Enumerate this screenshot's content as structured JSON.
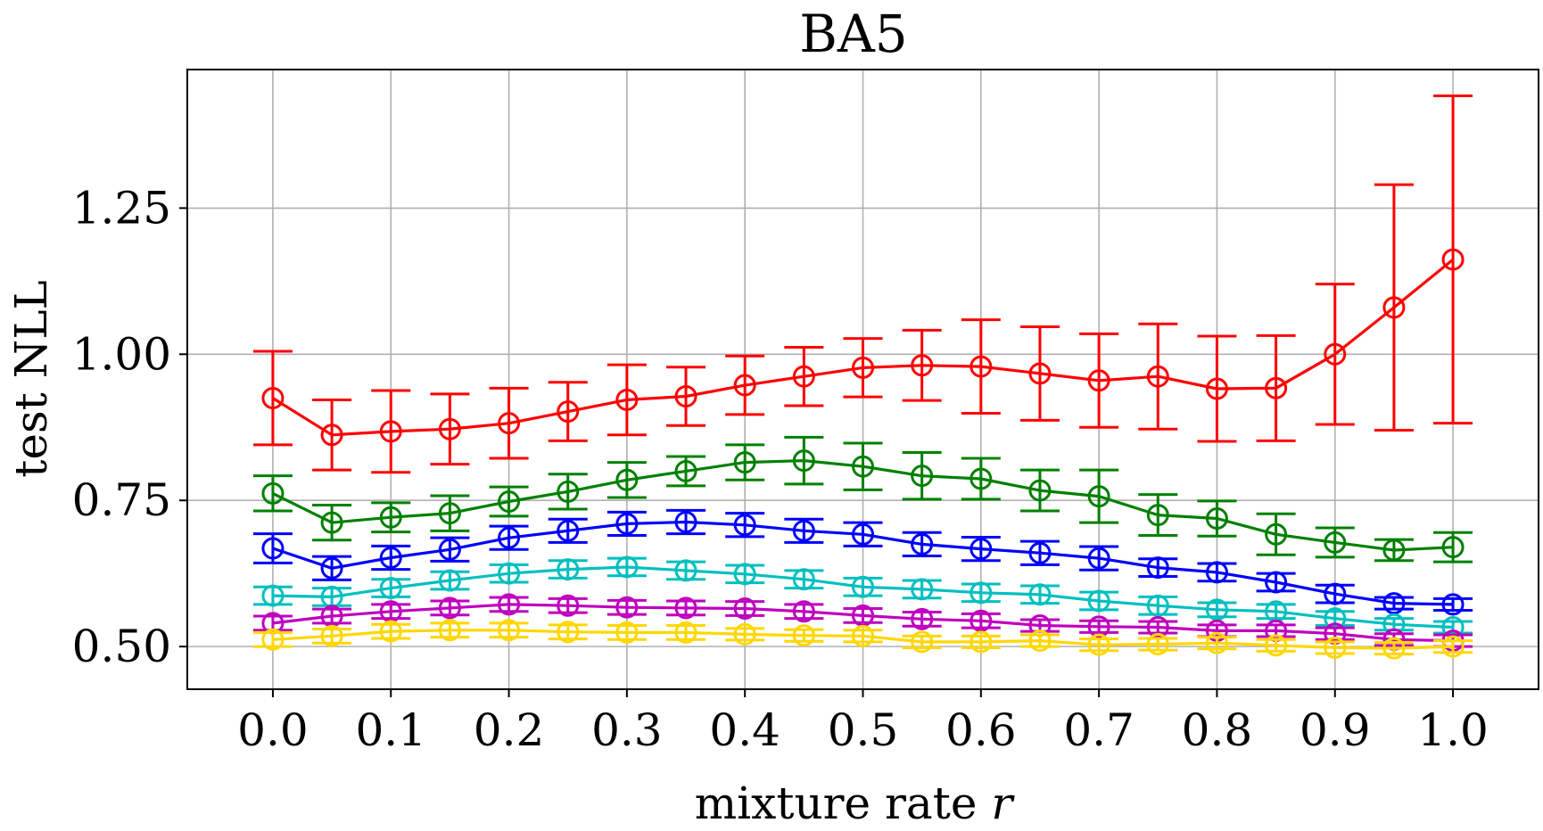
{
  "chart_data": {
    "type": "line",
    "title": "BA5",
    "xlabel_text": "mixture rate ",
    "xlabel_var": "r",
    "ylabel": "test NLL",
    "xlim": [
      -0.0725,
      1.0725
    ],
    "ylim": [
      0.427,
      1.487
    ],
    "grid": true,
    "x": [
      0.0,
      0.05,
      0.1,
      0.15,
      0.2,
      0.25,
      0.3,
      0.35,
      0.4,
      0.45,
      0.5,
      0.55,
      0.6,
      0.65,
      0.7,
      0.75,
      0.8,
      0.85,
      0.9,
      0.95,
      1.0
    ],
    "xticks": [
      {
        "value": 0.0,
        "label": "0.0"
      },
      {
        "value": 0.1,
        "label": "0.1"
      },
      {
        "value": 0.2,
        "label": "0.2"
      },
      {
        "value": 0.3,
        "label": "0.3"
      },
      {
        "value": 0.4,
        "label": "0.4"
      },
      {
        "value": 0.5,
        "label": "0.5"
      },
      {
        "value": 0.6,
        "label": "0.6"
      },
      {
        "value": 0.7,
        "label": "0.7"
      },
      {
        "value": 0.8,
        "label": "0.8"
      },
      {
        "value": 0.9,
        "label": "0.9"
      },
      {
        "value": 1.0,
        "label": "1.0"
      }
    ],
    "yticks": [
      {
        "value": 0.5,
        "label": "0.50"
      },
      {
        "value": 0.75,
        "label": "0.75"
      },
      {
        "value": 1.0,
        "label": "1.00"
      },
      {
        "value": 1.25,
        "label": "1.25"
      }
    ],
    "series": [
      {
        "name": "red",
        "color": "#ff0000",
        "values": [
          0.925,
          0.862,
          0.868,
          0.872,
          0.882,
          0.902,
          0.922,
          0.928,
          0.947,
          0.962,
          0.977,
          0.981,
          0.979,
          0.967,
          0.955,
          0.962,
          0.941,
          0.942,
          1.0,
          1.08,
          1.162
        ],
        "errors": [
          0.08,
          0.06,
          0.07,
          0.06,
          0.06,
          0.05,
          0.06,
          0.05,
          0.05,
          0.05,
          0.05,
          0.06,
          0.08,
          0.08,
          0.08,
          0.09,
          0.09,
          0.09,
          0.12,
          0.21,
          0.28
        ]
      },
      {
        "name": "green",
        "color": "#008000",
        "values": [
          0.762,
          0.712,
          0.721,
          0.728,
          0.748,
          0.765,
          0.785,
          0.8,
          0.815,
          0.818,
          0.808,
          0.792,
          0.787,
          0.767,
          0.757,
          0.725,
          0.719,
          0.692,
          0.678,
          0.665,
          0.67
        ],
        "errors": [
          0.03,
          0.03,
          0.025,
          0.03,
          0.025,
          0.03,
          0.03,
          0.025,
          0.03,
          0.04,
          0.04,
          0.04,
          0.035,
          0.035,
          0.045,
          0.035,
          0.03,
          0.035,
          0.025,
          0.018,
          0.025
        ]
      },
      {
        "name": "blue",
        "color": "#0000ff",
        "values": [
          0.668,
          0.634,
          0.652,
          0.666,
          0.686,
          0.698,
          0.71,
          0.713,
          0.708,
          0.698,
          0.692,
          0.675,
          0.667,
          0.66,
          0.651,
          0.635,
          0.627,
          0.61,
          0.59,
          0.574,
          0.572
        ],
        "errors": [
          0.025,
          0.02,
          0.02,
          0.02,
          0.02,
          0.02,
          0.02,
          0.02,
          0.02,
          0.02,
          0.02,
          0.02,
          0.02,
          0.02,
          0.02,
          0.015,
          0.015,
          0.015,
          0.015,
          0.01,
          0.01
        ]
      },
      {
        "name": "cyan",
        "color": "#00bfbf",
        "values": [
          0.587,
          0.585,
          0.6,
          0.613,
          0.625,
          0.632,
          0.636,
          0.63,
          0.624,
          0.615,
          0.602,
          0.598,
          0.592,
          0.589,
          0.578,
          0.57,
          0.563,
          0.56,
          0.548,
          0.538,
          0.533
        ],
        "errors": [
          0.015,
          0.015,
          0.015,
          0.015,
          0.015,
          0.015,
          0.015,
          0.015,
          0.015,
          0.015,
          0.015,
          0.015,
          0.015,
          0.015,
          0.015,
          0.015,
          0.012,
          0.012,
          0.012,
          0.01,
          0.01
        ]
      },
      {
        "name": "magenta",
        "color": "#bf00bf",
        "values": [
          0.54,
          0.552,
          0.56,
          0.566,
          0.572,
          0.57,
          0.567,
          0.566,
          0.565,
          0.56,
          0.553,
          0.547,
          0.544,
          0.536,
          0.534,
          0.533,
          0.527,
          0.527,
          0.522,
          0.512,
          0.51
        ],
        "errors": [
          0.012,
          0.012,
          0.012,
          0.012,
          0.012,
          0.012,
          0.012,
          0.012,
          0.012,
          0.012,
          0.012,
          0.012,
          0.012,
          0.01,
          0.01,
          0.01,
          0.01,
          0.01,
          0.01,
          0.01,
          0.01
        ]
      },
      {
        "name": "yellow",
        "color": "#ffd700",
        "values": [
          0.512,
          0.518,
          0.526,
          0.528,
          0.528,
          0.525,
          0.524,
          0.524,
          0.521,
          0.519,
          0.518,
          0.508,
          0.508,
          0.51,
          0.503,
          0.504,
          0.506,
          0.502,
          0.498,
          0.497,
          0.5
        ],
        "errors": [
          0.012,
          0.012,
          0.012,
          0.012,
          0.012,
          0.012,
          0.012,
          0.012,
          0.01,
          0.01,
          0.01,
          0.01,
          0.01,
          0.01,
          0.01,
          0.01,
          0.01,
          0.01,
          0.01,
          0.01,
          0.01
        ]
      }
    ]
  }
}
